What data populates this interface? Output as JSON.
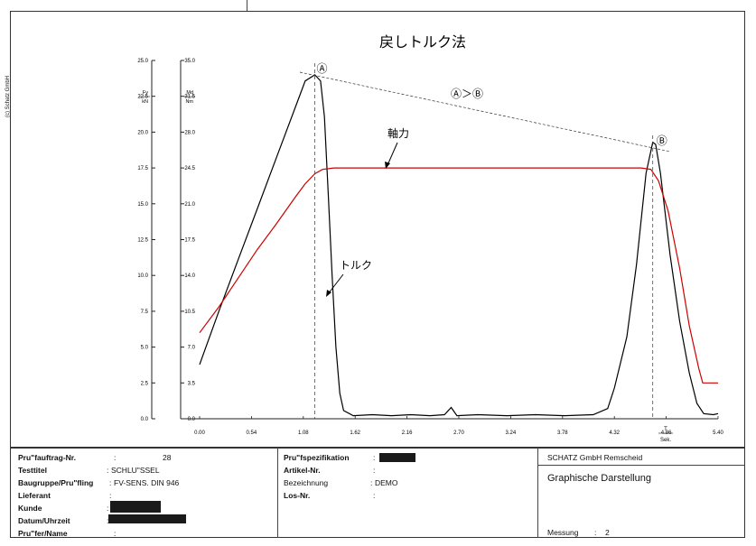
{
  "copyright": "(c) Schatz GmbH",
  "chart_data": {
    "type": "line",
    "title": "戻しトルク法",
    "xlabel": "T Sek.",
    "x_unit_top": "T",
    "x_unit_bottom": "Sek.",
    "x_ticks": [
      "0.00",
      "0.54",
      "1.08",
      "1.62",
      "2.16",
      "2.70",
      "3.24",
      "3.78",
      "4.32",
      "4.86",
      "5.40"
    ],
    "xlim": [
      0,
      5.4
    ],
    "left_axis": {
      "label_top": "Fv",
      "label_bottom": "kN",
      "ylim": [
        0,
        25
      ],
      "ticks": [
        "0.0",
        "2.5",
        "5.0",
        "7.5",
        "10.0",
        "12.5",
        "15.0",
        "17.5",
        "20.0",
        "22.5",
        "25.0"
      ]
    },
    "right_axis": {
      "label_top": "Md",
      "label_bottom": "Nm",
      "ylim": [
        0,
        35
      ],
      "ticks": [
        "0.0",
        "3.5",
        "7.0",
        "10.5",
        "14.0",
        "17.5",
        "21.0",
        "24.5",
        "28.0",
        "31.5",
        "35.0"
      ]
    },
    "series": [
      {
        "name": "トルク",
        "color": "#000000",
        "axis": "right",
        "points": [
          [
            0,
            5.3
          ],
          [
            0.2,
            10.5
          ],
          [
            0.4,
            15.5
          ],
          [
            0.6,
            20.5
          ],
          [
            0.8,
            25.5
          ],
          [
            1.0,
            30.5
          ],
          [
            1.1,
            33.0
          ],
          [
            1.2,
            33.6
          ],
          [
            1.26,
            33.0
          ],
          [
            1.3,
            29.5
          ],
          [
            1.34,
            22
          ],
          [
            1.38,
            14
          ],
          [
            1.42,
            7
          ],
          [
            1.46,
            2.5
          ],
          [
            1.5,
            0.8
          ],
          [
            1.6,
            0.3
          ],
          [
            1.8,
            0.4
          ],
          [
            2.0,
            0.3
          ],
          [
            2.2,
            0.4
          ],
          [
            2.4,
            0.3
          ],
          [
            2.55,
            0.4
          ],
          [
            2.62,
            1.1
          ],
          [
            2.68,
            0.3
          ],
          [
            2.9,
            0.4
          ],
          [
            3.2,
            0.3
          ],
          [
            3.5,
            0.4
          ],
          [
            3.8,
            0.3
          ],
          [
            4.1,
            0.4
          ],
          [
            4.25,
            1.0
          ],
          [
            4.32,
            3.0
          ],
          [
            4.45,
            8.0
          ],
          [
            4.55,
            15.0
          ],
          [
            4.65,
            24.0
          ],
          [
            4.72,
            27.0
          ],
          [
            4.75,
            26.8
          ],
          [
            4.8,
            24.0
          ],
          [
            4.9,
            16.0
          ],
          [
            5.0,
            9.5
          ],
          [
            5.1,
            4.5
          ],
          [
            5.18,
            1.5
          ],
          [
            5.25,
            0.5
          ],
          [
            5.35,
            0.4
          ],
          [
            5.4,
            0.5
          ]
        ]
      },
      {
        "name": "軸力",
        "color": "#cc0000",
        "axis": "left",
        "points": [
          [
            0,
            6.0
          ],
          [
            0.2,
            7.8
          ],
          [
            0.4,
            9.8
          ],
          [
            0.6,
            11.8
          ],
          [
            0.8,
            13.6
          ],
          [
            1.0,
            15.5
          ],
          [
            1.1,
            16.4
          ],
          [
            1.2,
            17.1
          ],
          [
            1.28,
            17.4
          ],
          [
            1.4,
            17.5
          ],
          [
            1.8,
            17.5
          ],
          [
            2.2,
            17.5
          ],
          [
            2.6,
            17.5
          ],
          [
            3.0,
            17.5
          ],
          [
            3.4,
            17.5
          ],
          [
            3.8,
            17.5
          ],
          [
            4.2,
            17.5
          ],
          [
            4.6,
            17.5
          ],
          [
            4.7,
            17.4
          ],
          [
            4.78,
            16.6
          ],
          [
            4.88,
            14.5
          ],
          [
            5.0,
            10.5
          ],
          [
            5.1,
            6.5
          ],
          [
            5.2,
            3.5
          ],
          [
            5.24,
            2.5
          ],
          [
            5.3,
            2.5
          ],
          [
            5.4,
            2.5
          ]
        ]
      }
    ],
    "annotations": {
      "point_a": "Ⓐ",
      "point_b": "Ⓑ",
      "compare": "Ⓐ＞Ⓑ",
      "a_x": 1.2,
      "a_y": 33.6,
      "b_x": 4.72,
      "b_y": 27.0
    },
    "grid": false
  },
  "info_left": [
    {
      "label": "Pru\"fauftrag-Nr.",
      "sep": ":",
      "value": "28"
    },
    {
      "label": "Testtitel",
      "sep": ":",
      "value": "SCHLU\"SSEL"
    },
    {
      "label": "Baugruppe/Pru\"fling",
      "sep": ":",
      "value": "FV-SENS. DIN 946"
    },
    {
      "label": "Lieferant",
      "sep": ":",
      "value": ""
    },
    {
      "label": "Kunde",
      "sep": ":",
      "value": ""
    },
    {
      "label": "Datum/Uhrzeit",
      "sep": ":",
      "value": ""
    },
    {
      "label": "Pru\"fer/Name",
      "sep": ":",
      "value": ""
    }
  ],
  "info_mid": [
    {
      "label": "Pru\"fspezifikation",
      "sep": ":",
      "value": ""
    },
    {
      "label": "Artikel-Nr.",
      "sep": ":",
      "value": ""
    },
    {
      "label": "Bezeichnung",
      "sep": ":",
      "value": "DEMO"
    },
    {
      "label": "Los-Nr.",
      "sep": ":",
      "value": ""
    }
  ],
  "company": "SCHATZ GmbH Remscheid",
  "doc_title": "Graphische Darstellung",
  "measurement_label": "Messung",
  "measurement_sep": ":",
  "measurement_value": "2"
}
